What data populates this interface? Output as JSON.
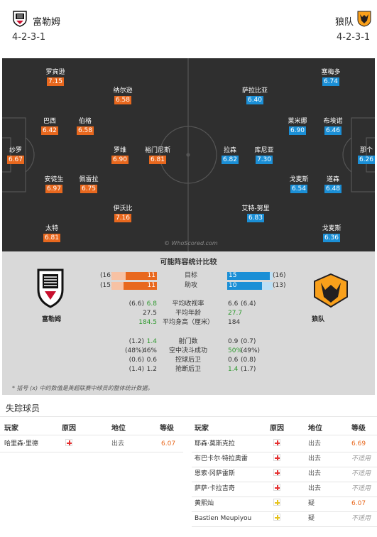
{
  "header": {
    "home_name": "富勒姆",
    "away_name": "狼队",
    "home_formation": "4-2-3-1",
    "away_formation": "4-2-3-1"
  },
  "pitch": {
    "watermark": "© WhoScored.com",
    "home_players": [
      {
        "name": "罗宾逊",
        "rating": "7.15"
      },
      {
        "name": "纳尔逊",
        "rating": "6.58"
      },
      {
        "name": "巴西",
        "rating": "6.42"
      },
      {
        "name": "伯格",
        "rating": "6.58"
      },
      {
        "name": "纱罗",
        "rating": "6.67"
      },
      {
        "name": "罗维",
        "rating": "6.90"
      },
      {
        "name": "裕门尼斯",
        "rating": "6.81"
      },
      {
        "name": "安徒生",
        "rating": "6.97"
      },
      {
        "name": "佩雷拉",
        "rating": "6.75"
      },
      {
        "name": "伊沃比",
        "rating": "7.16"
      },
      {
        "name": "太特",
        "rating": "6.81"
      }
    ],
    "away_players": [
      {
        "name": "塞梅多",
        "rating": "6.74"
      },
      {
        "name": "萨拉比亚",
        "rating": "6.40"
      },
      {
        "name": "莱米娜",
        "rating": "6.90"
      },
      {
        "name": "布埃诺",
        "rating": "6.46"
      },
      {
        "name": "拉森",
        "rating": "6.82"
      },
      {
        "name": "库尼亚",
        "rating": "7.30"
      },
      {
        "name": "那个",
        "rating": "6.26"
      },
      {
        "name": "戈麦斯",
        "rating": "6.54"
      },
      {
        "name": "道森",
        "rating": "6.48"
      },
      {
        "name": "艾特-努里",
        "rating": "6.83"
      },
      {
        "name": "戈麦斯",
        "rating": "6.36"
      }
    ]
  },
  "stats": {
    "title": "可能阵容统计比较",
    "home_label": "富勒姆",
    "away_label": "狼队",
    "bars": [
      {
        "label": "目标",
        "home_season": "(16)",
        "home": "11",
        "away": "15",
        "away_season": "(16)",
        "home_frac": 0.69,
        "away_frac": 0.94
      },
      {
        "label": "助攻",
        "home_season": "(15)",
        "home": "11",
        "away": "10",
        "away_season": "(13)",
        "home_frac": 0.73,
        "away_frac": 0.77
      }
    ],
    "rows_a": [
      {
        "home_season": "(6.6)",
        "home": "6.8",
        "label": "平均收视率",
        "away": "6.6",
        "away_season": "(6.4)",
        "home_green": true,
        "away_green": false
      },
      {
        "home_season": "",
        "home": "27.5",
        "label": "平均年龄",
        "away": "27.7",
        "away_season": "",
        "home_green": false,
        "away_green": true
      },
      {
        "home_season": "",
        "home": "184.5",
        "label": "平均身高（厘米）",
        "away": "184",
        "away_season": "",
        "home_green": true,
        "away_green": false
      }
    ],
    "rows_b": [
      {
        "home_season": "(1.2)",
        "home": "1.4",
        "label": "射门数",
        "away": "0.9",
        "away_season": "(0.7)",
        "home_green": true,
        "away_green": false
      },
      {
        "home_season": "(48%)",
        "home": "46%",
        "label": "空中决斗成功",
        "away": "50%",
        "away_season": "(49%)",
        "home_green": false,
        "away_green": true
      },
      {
        "home_season": "(0.6)",
        "home": "0.6",
        "label": "控球后卫",
        "away": "0.6",
        "away_season": "(0.8)",
        "home_green": false,
        "away_green": false
      },
      {
        "home_season": "(1.4)",
        "home": "1.2",
        "label": "抢断后卫",
        "away": "1.4",
        "away_season": "(1.7)",
        "home_green": false,
        "away_green": true
      }
    ],
    "note": "* 括号 (x) 中的数值是英超联赛中球员的整体统计数据。"
  },
  "missing": {
    "title": "失踪球员",
    "headers": {
      "player": "玩家",
      "reason": "原因",
      "status": "地位",
      "grade": "等级"
    },
    "home": [
      {
        "player": "哈里森·里德",
        "reason_type": "injury",
        "status": "出去",
        "grade": "6.07",
        "grade_style": "o"
      }
    ],
    "away": [
      {
        "player": "耶森·莫斯克拉",
        "reason_type": "injury",
        "status": "出去",
        "grade": "6.69",
        "grade_style": "o"
      },
      {
        "player": "布巴卡尔·特拉奥雷",
        "reason_type": "injury",
        "status": "出去",
        "grade": "不适用",
        "grade_style": "na"
      },
      {
        "player": "恩索·冈萨雷斯",
        "reason_type": "injury",
        "status": "出去",
        "grade": "不适用",
        "grade_style": "na"
      },
      {
        "player": "萨萨·卡拉吉奇",
        "reason_type": "injury",
        "status": "出去",
        "grade": "不适用",
        "grade_style": "na"
      },
      {
        "player": "黄熙灿",
        "reason_type": "doubtful",
        "status": "疑",
        "grade": "6.07",
        "grade_style": "o"
      },
      {
        "player": "Bastien Meupiyou",
        "reason_type": "doubtful",
        "status": "疑",
        "grade": "不适用",
        "grade_style": "na"
      }
    ]
  },
  "colors": {
    "home_rating": "#e8681e",
    "away_rating": "#1b8fd6",
    "pitch": "#2f2f2f",
    "stats_bg": "#d9d9d9",
    "better": "#2e9a2e"
  }
}
